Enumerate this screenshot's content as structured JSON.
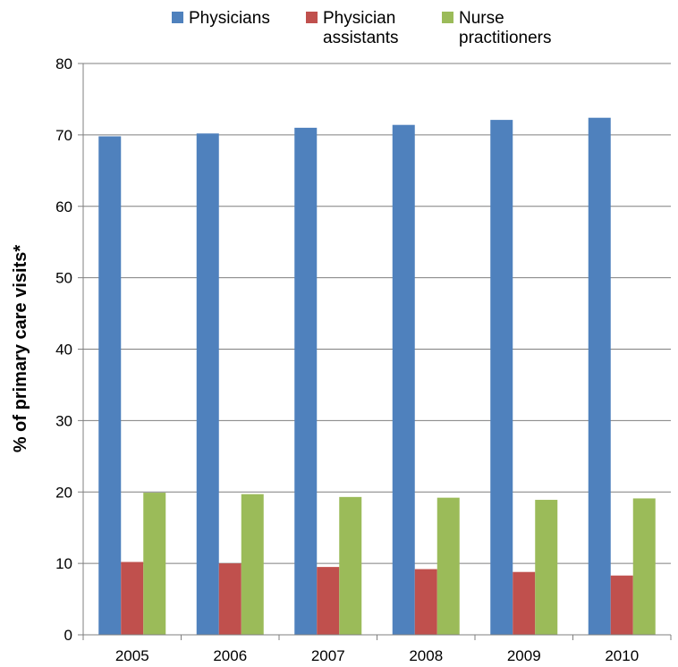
{
  "chart_data": {
    "type": "bar",
    "title": "",
    "xlabel": "",
    "ylabel": "% of primary care visits*",
    "ylim": [
      0,
      80
    ],
    "yticks": [
      0,
      10,
      20,
      30,
      40,
      50,
      60,
      70,
      80
    ],
    "grid": true,
    "legend_position": "top",
    "categories": [
      "2005",
      "2006",
      "2007",
      "2008",
      "2009",
      "2010"
    ],
    "series": [
      {
        "name": "Physicians",
        "color": "#4F81BD",
        "values": [
          69.8,
          70.2,
          71.0,
          71.4,
          72.1,
          72.4
        ]
      },
      {
        "name": "Physician assistants",
        "color": "#C0504D",
        "values": [
          10.2,
          10.0,
          9.5,
          9.2,
          8.8,
          8.3
        ]
      },
      {
        "name": "Nurse practitioners",
        "color": "#9BBB59",
        "values": [
          19.9,
          19.7,
          19.3,
          19.2,
          18.9,
          19.1
        ]
      }
    ],
    "legend_lines": [
      [
        "Physicians"
      ],
      [
        "Physician",
        "assistants"
      ],
      [
        "Nurse",
        "practitioners"
      ]
    ]
  }
}
